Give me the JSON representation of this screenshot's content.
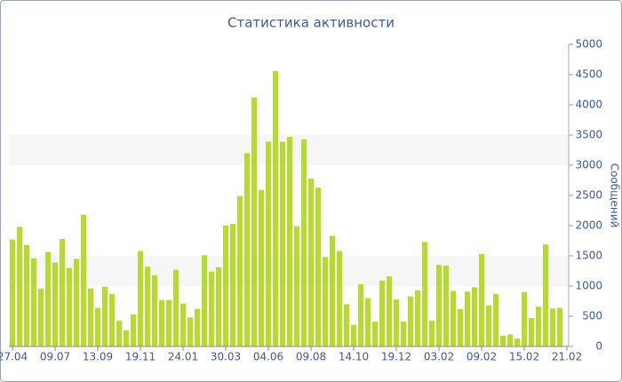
{
  "chart_data": {
    "type": "bar",
    "title": "Статистика активности",
    "y_label": "Сообщений",
    "categories": [
      "27.04",
      null,
      null,
      null,
      null,
      null,
      "09.07",
      null,
      null,
      null,
      null,
      null,
      "13.09",
      null,
      null,
      null,
      null,
      null,
      "19.11",
      null,
      null,
      null,
      null,
      null,
      "24.01",
      null,
      null,
      null,
      null,
      null,
      "30.03",
      null,
      null,
      null,
      null,
      null,
      "04.06",
      null,
      null,
      null,
      null,
      null,
      "09.08",
      null,
      null,
      null,
      null,
      null,
      "14.10",
      null,
      null,
      null,
      null,
      null,
      "19.12",
      null,
      null,
      null,
      null,
      null,
      "03.02",
      null,
      null,
      null,
      null,
      null,
      "09.02",
      null,
      null,
      null,
      null,
      null,
      "15.02",
      null,
      null,
      null,
      null,
      null,
      "21.02"
    ],
    "values": [
      1770,
      1980,
      1680,
      1460,
      960,
      1560,
      1390,
      1780,
      1300,
      1450,
      2180,
      960,
      640,
      990,
      870,
      430,
      270,
      530,
      1580,
      1320,
      1180,
      770,
      770,
      1270,
      710,
      480,
      620,
      1510,
      1240,
      1310,
      2000,
      2030,
      2490,
      3200,
      4120,
      2590,
      3390,
      4560,
      3390,
      3470,
      1990,
      3430,
      2780,
      2630,
      1480,
      1830,
      1580,
      700,
      360,
      1030,
      800,
      410,
      1090,
      1160,
      780,
      410,
      830,
      930,
      1730,
      430,
      1350,
      1340,
      920,
      620,
      910,
      980,
      1530,
      680,
      870,
      180,
      200,
      130,
      900,
      470,
      660,
      1690,
      630,
      640,
      null
    ],
    "color": "#b5dc2c",
    "ylim": [
      0,
      5000
    ],
    "yticks": [
      0,
      500,
      1000,
      1500,
      2000,
      2500,
      3000,
      3500,
      4000,
      4500,
      5000
    ],
    "grid": "bands",
    "y_axis_side": "right"
  }
}
